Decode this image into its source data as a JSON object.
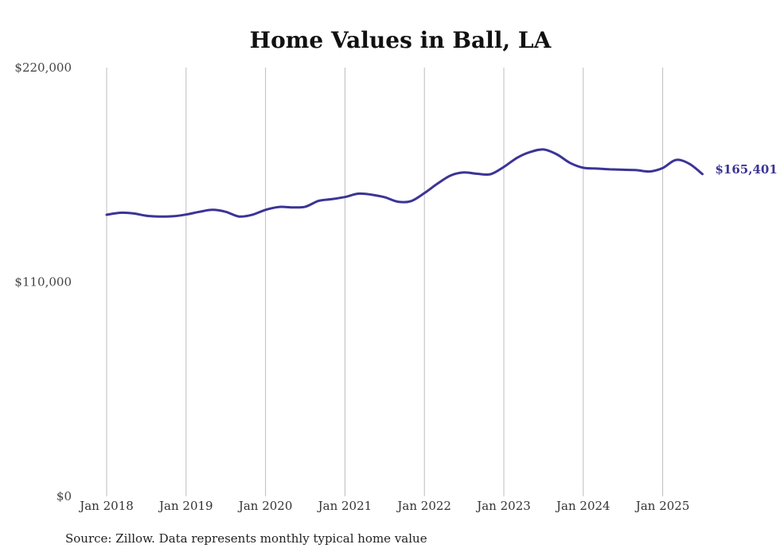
{
  "chart_data": {
    "type": "line",
    "title": "Home Values in Ball, LA",
    "xlabel": "",
    "ylabel": "",
    "ylim": [
      0,
      220000
    ],
    "y_ticks": [
      {
        "value": 0,
        "label": "$0"
      },
      {
        "value": 110000,
        "label": "$110,000"
      },
      {
        "value": 220000,
        "label": "$220,000"
      }
    ],
    "x_ticks": [
      {
        "value": 2018,
        "label": "Jan 2018"
      },
      {
        "value": 2019,
        "label": "Jan 2019"
      },
      {
        "value": 2020,
        "label": "Jan 2020"
      },
      {
        "value": 2021,
        "label": "Jan 2021"
      },
      {
        "value": 2022,
        "label": "Jan 2022"
      },
      {
        "value": 2023,
        "label": "Jan 2023"
      },
      {
        "value": 2024,
        "label": "Jan 2024"
      },
      {
        "value": 2025,
        "label": "Jan 2025"
      }
    ],
    "grid": "vertical",
    "legend": "none",
    "end_label": "$165,401",
    "line_color": "#3b3496",
    "series": [
      {
        "x": [
          "2018-01",
          "2018-03",
          "2018-05",
          "2018-07",
          "2018-09",
          "2018-11",
          "2019-01",
          "2019-03",
          "2019-05",
          "2019-07",
          "2019-09",
          "2019-11",
          "2020-01",
          "2020-03",
          "2020-05",
          "2020-07",
          "2020-09",
          "2020-11",
          "2021-01",
          "2021-03",
          "2021-05",
          "2021-07",
          "2021-09",
          "2021-11",
          "2022-01",
          "2022-03",
          "2022-05",
          "2022-07",
          "2022-09",
          "2022-11",
          "2023-01",
          "2023-03",
          "2023-05",
          "2023-07",
          "2023-09",
          "2023-11",
          "2024-01",
          "2024-03",
          "2024-05",
          "2024-07",
          "2024-09",
          "2024-11",
          "2025-01",
          "2025-03",
          "2025-05",
          "2025-07"
        ],
        "values": [
          144500,
          145500,
          145200,
          144000,
          143600,
          143700,
          144600,
          146000,
          147000,
          146000,
          143600,
          144500,
          147000,
          148500,
          148300,
          148600,
          151600,
          152500,
          153600,
          155300,
          154800,
          153500,
          151200,
          151500,
          155600,
          160500,
          164700,
          166200,
          165500,
          165300,
          169000,
          173700,
          176700,
          178000,
          175500,
          171100,
          168600,
          168200,
          167800,
          167600,
          167400,
          166700,
          168500,
          172600,
          170700,
          165401
        ]
      }
    ]
  },
  "source_note": "Source: Zillow. Data represents monthly typical home value"
}
